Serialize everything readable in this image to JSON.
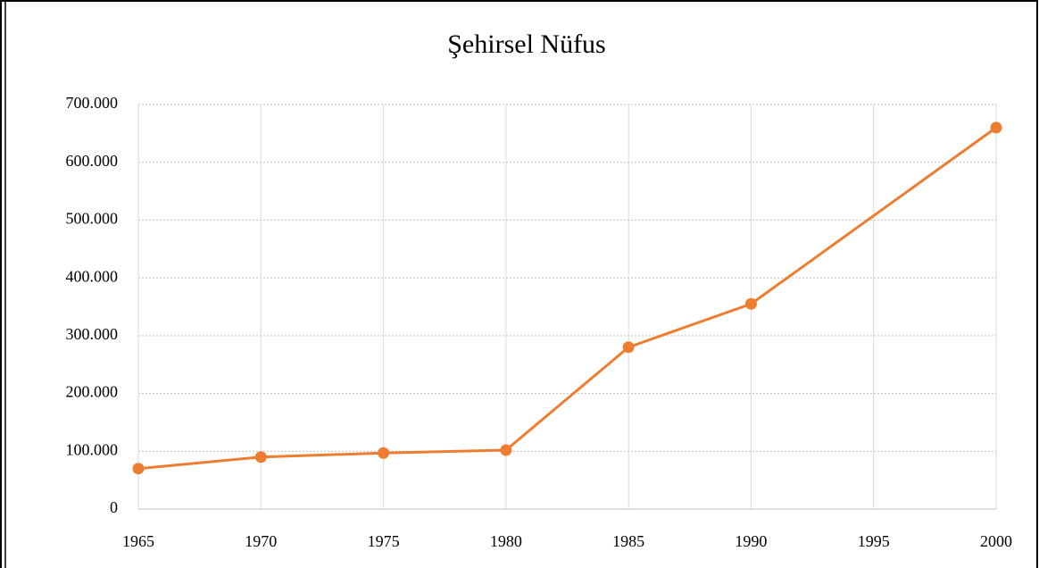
{
  "chart_data": {
    "type": "line",
    "title": "Şehirsel  Nüfus",
    "x": [
      1965,
      1970,
      1975,
      1980,
      1985,
      1990,
      2000
    ],
    "series": [
      {
        "name": "Şehirsel Nüfus",
        "color": "#ed7d31",
        "values": [
          70000,
          90000,
          97000,
          102000,
          280000,
          355000,
          660000
        ]
      }
    ],
    "xlim": [
      1965,
      2000
    ],
    "xticks": [
      1965,
      1970,
      1975,
      1980,
      1985,
      1990,
      1995,
      2000
    ],
    "ylim": [
      0,
      700000
    ],
    "yticks": [
      0,
      {
        "value": 100000,
        "label": "100.000"
      },
      {
        "value": 200000,
        "label": "200.000"
      },
      {
        "value": 300000,
        "label": "300.000"
      },
      {
        "value": 400000,
        "label": "400.000"
      },
      {
        "value": 500000,
        "label": "500.000"
      },
      {
        "value": 600000,
        "label": "600.000"
      },
      {
        "value": 700000,
        "label": "700.000"
      }
    ],
    "grid": true
  }
}
